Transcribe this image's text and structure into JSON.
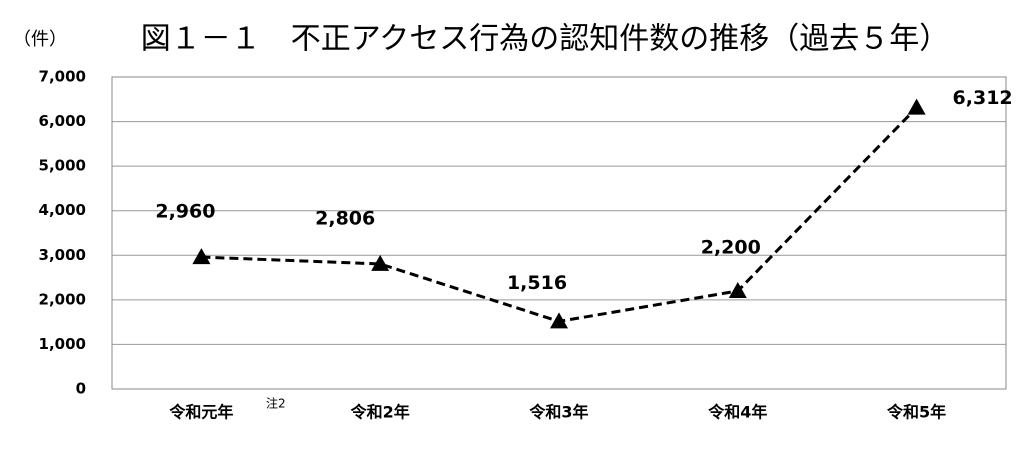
{
  "chart_data": {
    "type": "line",
    "title": "図１－１　不正アクセス行為の認知件数の推移（過去５年）",
    "y_unit": "（件）",
    "categories": [
      "令和元年",
      "令和2年",
      "令和3年",
      "令和4年",
      "令和5年"
    ],
    "category_note": "注2",
    "values": [
      2960,
      2806,
      1516,
      2200,
      6312
    ],
    "value_labels": [
      "2,960",
      "2,806",
      "1,516",
      "2,200",
      "6,312"
    ],
    "color": "#000000",
    "dashed": true,
    "marker": "triangle",
    "ylim": [
      0,
      7000
    ],
    "yticks": [
      0,
      {
        "value": 1000,
        "label": "1,000"
      },
      {
        "value": 2000,
        "label": "2,000"
      },
      {
        "value": 3000,
        "label": "3,000"
      },
      {
        "value": 4000,
        "label": "4,000"
      },
      {
        "value": 5000,
        "label": "5,000"
      },
      {
        "value": 6000,
        "label": "6,000"
      },
      {
        "value": 7000,
        "label": "7,000"
      }
    ],
    "grid": true
  }
}
